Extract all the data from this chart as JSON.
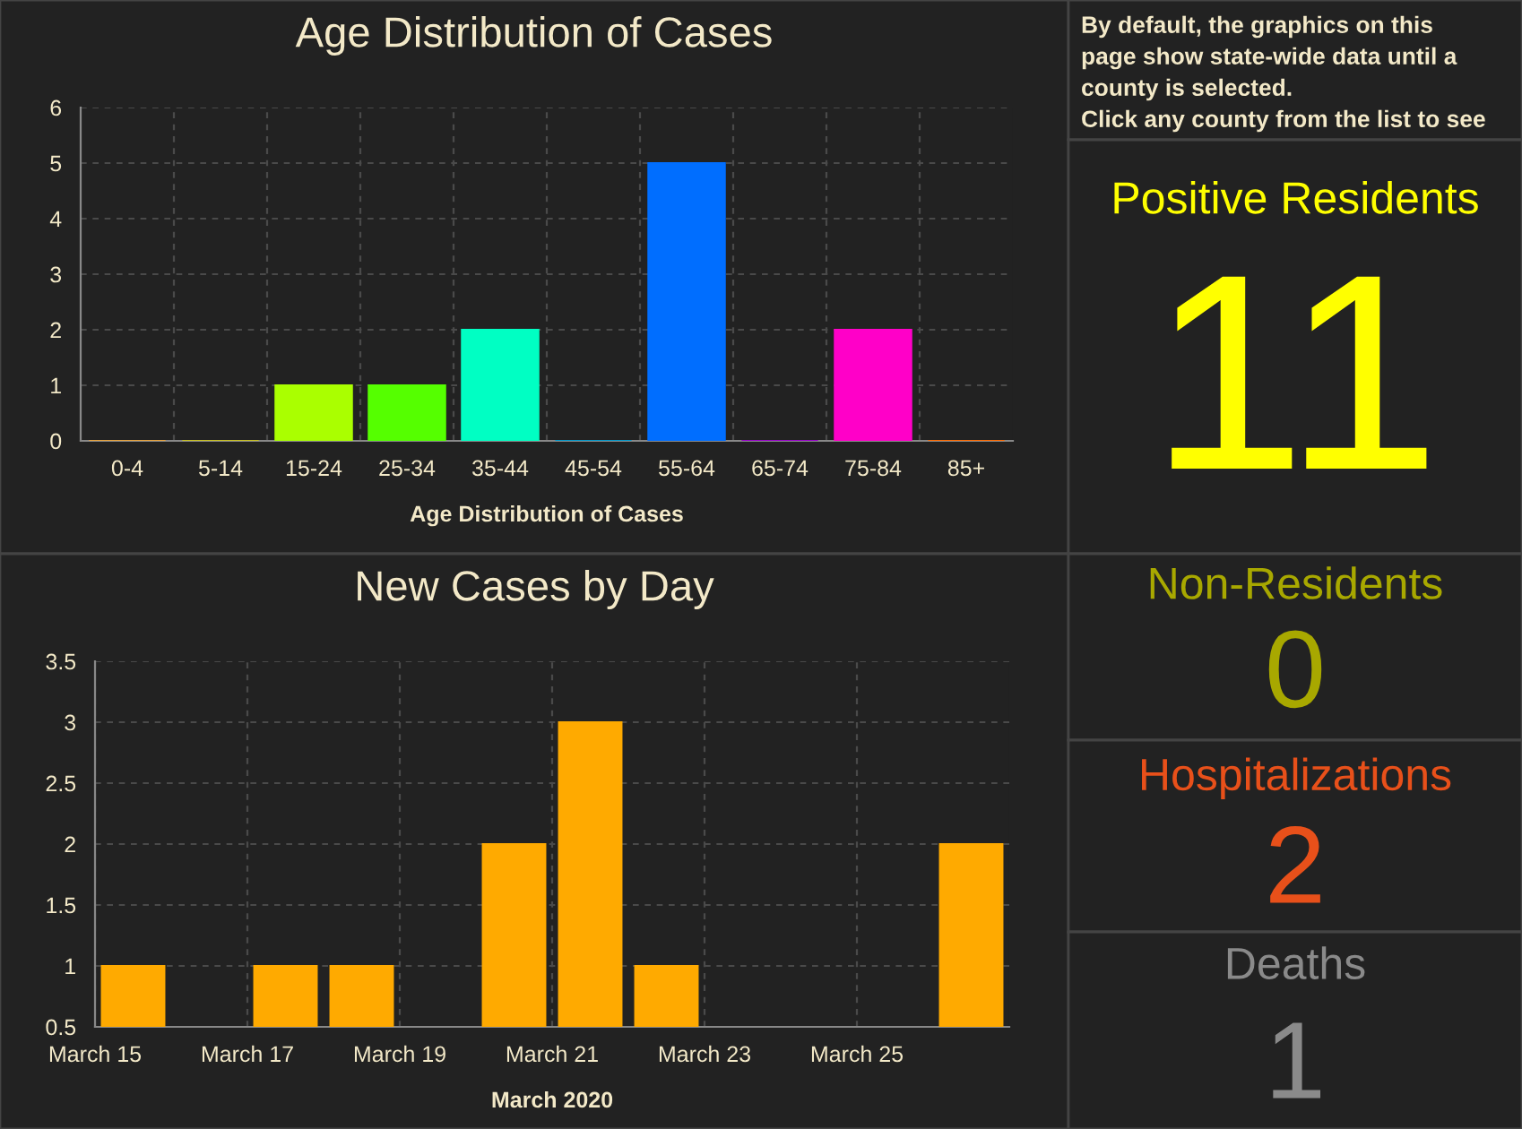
{
  "chart_data": [
    {
      "type": "bar",
      "title": "Age Distribution of Cases",
      "xlabel": "Age Distribution of Cases",
      "categories": [
        "0-4",
        "5-14",
        "15-24",
        "25-34",
        "35-44",
        "45-54",
        "55-64",
        "65-74",
        "75-84",
        "85+"
      ],
      "values": [
        0,
        0,
        1,
        1,
        2,
        0,
        5,
        0,
        2,
        0
      ],
      "colors": [
        "#e8a33d",
        "#c8c020",
        "#aaff00",
        "#55ff00",
        "#00ffc3",
        "#0099cc",
        "#006eff",
        "#9900cc",
        "#ff00c8",
        "#ff6a00"
      ],
      "ylim": [
        0,
        6
      ],
      "yticks": [
        0,
        1,
        2,
        3,
        4,
        5,
        6
      ],
      "grid": true
    },
    {
      "type": "other",
      "annotations": [
        "By default, the graphics on this",
        "page show state-wide data until a",
        "county is selected.",
        "Click any county from the list to see"
      ]
    },
    {
      "type": "other",
      "title": "Positive Residents",
      "annotations": [
        "11"
      ],
      "color": "#ffff00"
    },
    {
      "type": "bar",
      "title": "New Cases by Day",
      "xlabel": "March 2020",
      "x": [
        "2020-03-15T12:00",
        "2020-03-17T12:00",
        "2020-03-18T12:00",
        "2020-03-20T12:00",
        "2020-03-21T12:00",
        "2020-03-22T12:00",
        "2020-03-26T12:00"
      ],
      "values": [
        1,
        1,
        1,
        2,
        3,
        1,
        2
      ],
      "color": "#ffaa00",
      "xlim": [
        "2020-03-15",
        "2020-03-27"
      ],
      "xticks": [
        {
          "value": "2020-03-15",
          "label": "March 15"
        },
        {
          "value": "2020-03-17",
          "label": "March 17"
        },
        {
          "value": "2020-03-19",
          "label": "March 19"
        },
        {
          "value": "2020-03-21",
          "label": "March 21"
        },
        {
          "value": "2020-03-23",
          "label": "March 23"
        },
        {
          "value": "2020-03-25",
          "label": "March 25"
        }
      ],
      "ylim": [
        0.5,
        3.5
      ],
      "yticks": [
        0.5,
        1,
        1.5,
        2,
        2.5,
        3,
        3.5
      ],
      "grid": true
    },
    {
      "type": "other",
      "title": "Non-Residents",
      "annotations": [
        "0"
      ],
      "color": "#a8a800"
    },
    {
      "type": "other",
      "title": "Hospitalizations",
      "annotations": [
        "2"
      ],
      "color": "#e8501a"
    },
    {
      "type": "other",
      "title": "Deaths",
      "annotations": [
        "1"
      ],
      "color": "#8a8a8a"
    }
  ]
}
